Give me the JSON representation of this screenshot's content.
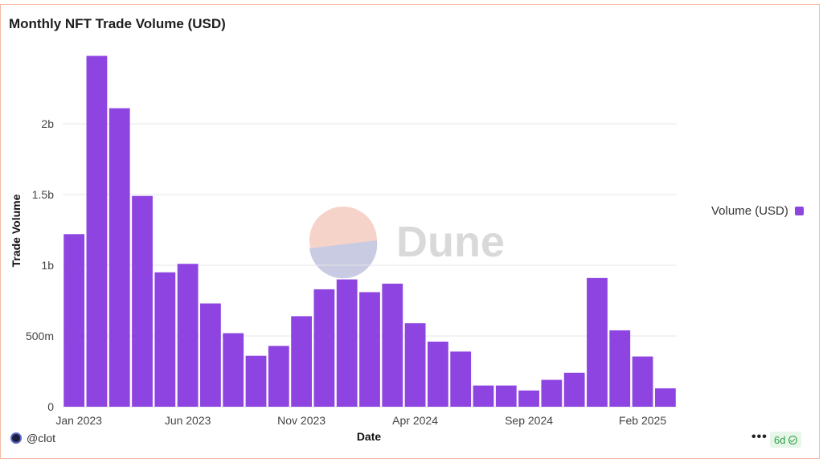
{
  "header": {
    "title": "Monthly NFT Trade Volume (USD)"
  },
  "legend": {
    "label": "Volume (USD)"
  },
  "watermark": {
    "text": "Dune"
  },
  "footer": {
    "user": "@clot",
    "more": "•••",
    "badge": "6d"
  },
  "colors": {
    "bar": "#8e44e0",
    "grid": "#e6e6e6",
    "border": "#f3b9a3"
  },
  "chart_data": {
    "type": "bar",
    "title": "Monthly NFT Trade Volume (USD)",
    "xlabel": "Date",
    "ylabel": "Trade Volume",
    "series": [
      {
        "name": "Volume (USD)",
        "values": [
          1220000000,
          2480000000,
          2110000000,
          1490000000,
          950000000,
          1010000000,
          730000000,
          520000000,
          360000000,
          430000000,
          640000000,
          830000000,
          900000000,
          810000000,
          870000000,
          590000000,
          460000000,
          390000000,
          150000000,
          150000000,
          115000000,
          190000000,
          240000000,
          910000000,
          540000000,
          355000000,
          130000000
        ]
      }
    ],
    "categories": [
      "Jan 2023",
      "Feb 2023",
      "Mar 2023",
      "Apr 2023",
      "May 2023",
      "Jun 2023",
      "Jul 2023",
      "Aug 2023",
      "Sep 2023",
      "Oct 2023",
      "Nov 2023",
      "Dec 2023",
      "Jan 2024",
      "Feb 2024",
      "Mar 2024",
      "Apr 2024",
      "May 2024",
      "Jun 2024",
      "Jul 2024",
      "Aug 2024",
      "Sep 2024",
      "Oct 2024",
      "Nov 2024",
      "Dec 2024",
      "Jan 2025",
      "Feb 2025",
      "Mar 2025"
    ],
    "x_tick_labels": [
      {
        "index": 0,
        "label": "Jan 2023"
      },
      {
        "index": 5,
        "label": "Jun 2023"
      },
      {
        "index": 10,
        "label": "Nov 2023"
      },
      {
        "index": 15,
        "label": "Apr 2024"
      },
      {
        "index": 20,
        "label": "Sep 2024"
      },
      {
        "index": 25,
        "label": "Feb 2025"
      }
    ],
    "y_ticks": [
      {
        "value": 0,
        "label": "0"
      },
      {
        "value": 500000000,
        "label": "500m"
      },
      {
        "value": 1000000000,
        "label": "1b"
      },
      {
        "value": 1500000000,
        "label": "1.5b"
      },
      {
        "value": 2000000000,
        "label": "2b"
      }
    ],
    "ylim": [
      0,
      2500000000
    ],
    "grid": true,
    "legend_position": "right"
  }
}
